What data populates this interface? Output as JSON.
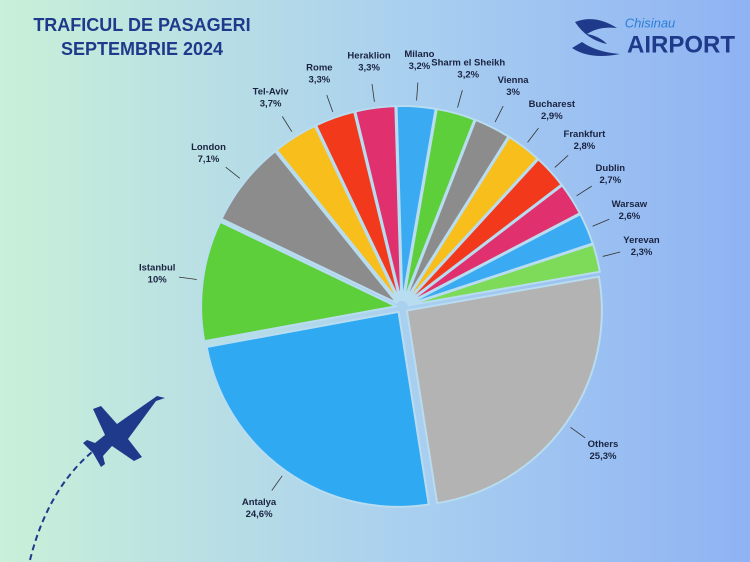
{
  "chart_data": {
    "type": "pie",
    "title": "TRAFICUL DE PASAGERI",
    "subtitle": "SEPTEMBRIE 2024",
    "categories": [
      "Others",
      "Antalya",
      "Istanbul",
      "London",
      "Tel-Aviv",
      "Rome",
      "Heraklion",
      "Milano",
      "Sharm el Sheikh",
      "Vienna",
      "Bucharest",
      "Frankfurt",
      "Dublin",
      "Warsaw",
      "Yerevan"
    ],
    "values": [
      25.3,
      24.6,
      10,
      7.1,
      3.7,
      3.3,
      3.3,
      3.2,
      3.2,
      3,
      2.9,
      2.8,
      2.7,
      2.6,
      2.3
    ],
    "value_labels": [
      "25,3%",
      "24,6%",
      "10%",
      "7,1%",
      "3,7%",
      "3,3%",
      "3,3%",
      "3,2%",
      "3,2%",
      "3%",
      "2,9%",
      "2,8%",
      "2,7%",
      "2,6%",
      "2,3%"
    ],
    "colors": [
      "#b3b3b3",
      "#2ea9f2",
      "#5ccf3a",
      "#8c8c8c",
      "#f8be1c",
      "#f2391c",
      "#e0306e",
      "#3aaaf2",
      "#5ccf3a",
      "#8c8c8c",
      "#f8be1c",
      "#f2391c",
      "#e0306e",
      "#3aaaf2",
      "#7edb5a"
    ]
  },
  "logo": {
    "city": "Chisinau",
    "name": "AIRPORT"
  }
}
